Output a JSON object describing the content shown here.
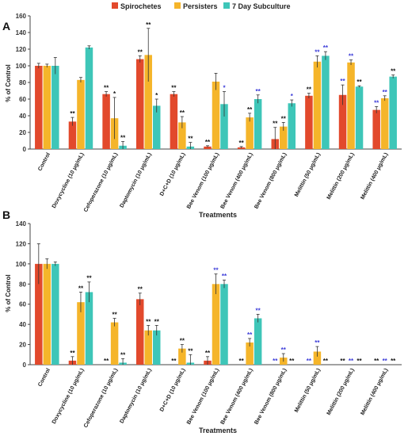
{
  "legend": [
    {
      "name": "Spirochetes",
      "color": "#e2492c"
    },
    {
      "name": "Persisters",
      "color": "#f5b52a"
    },
    {
      "name": "7 Day Subculture",
      "color": "#3ec6b8"
    }
  ],
  "colors": {
    "star_black": "#111111",
    "star_blue": "#3a3ad8",
    "axis": "#444444"
  },
  "chart_data": [
    {
      "type": "bar",
      "panel_label": "A",
      "ylabel": "% of Control",
      "xlabel": "Treatments",
      "ylim": [
        0,
        160
      ],
      "yticks": [
        0,
        20,
        40,
        60,
        80,
        100,
        120,
        140,
        160
      ],
      "grid": false,
      "legend_position": "top-center",
      "categories": [
        "Control",
        "Doxycycline (10 μg/mL)",
        "Cefoperazone (10 μg/mL)",
        "Daptomycin (10 μg/mL)",
        "D+C+D (10 μg/mL)",
        "Bee Venom (100 μg/mL)",
        "Bee Venom (400 μg/mL)",
        "Bee Venom (800 μg/mL)",
        "Melittin (50 μg/mL)",
        "Melittin (200 μg/mL)",
        "Melittin (400 μg/mL)"
      ],
      "series": [
        {
          "name": "Spirochetes",
          "values": [
            100,
            33,
            66,
            108,
            66,
            3,
            2,
            12,
            64,
            65,
            47
          ],
          "errors": [
            3,
            5,
            3,
            4,
            3,
            1,
            1,
            14,
            3,
            12,
            4
          ],
          "stars": [
            "",
            "**",
            "**",
            "**",
            "**",
            "**",
            "**",
            "**",
            "**",
            "**",
            "**"
          ],
          "star_colors": [
            "",
            "black",
            "black",
            "black",
            "black",
            "black",
            "black",
            "black",
            "black",
            "blue",
            "blue"
          ]
        },
        {
          "name": "Persisters",
          "values": [
            100,
            83,
            37,
            113,
            32,
            81,
            38,
            27,
            105,
            104,
            61
          ],
          "errors": [
            2,
            3,
            25,
            32,
            7,
            10,
            5,
            5,
            7,
            3,
            3
          ],
          "stars": [
            "",
            "",
            "*",
            "**",
            "**",
            "",
            "**",
            "**",
            "**",
            "**",
            "**"
          ],
          "star_colors": [
            "",
            "black",
            "black",
            "black",
            "black",
            "black",
            "black",
            "black",
            "blue",
            "blue",
            "blue"
          ]
        },
        {
          "name": "7 Day Subculture",
          "values": [
            100,
            122,
            4,
            52,
            3,
            54,
            60,
            55,
            112,
            75,
            87
          ],
          "errors": [
            10,
            2,
            5,
            8,
            5,
            15,
            5,
            4,
            5,
            1,
            2
          ],
          "stars": [
            "",
            "",
            "**",
            "*",
            "**",
            "*",
            "**",
            "*",
            "**",
            "**",
            "**"
          ],
          "star_colors": [
            "",
            "black",
            "black",
            "black",
            "black",
            "blue",
            "blue",
            "blue",
            "blue",
            "black",
            "black"
          ]
        }
      ]
    },
    {
      "type": "bar",
      "panel_label": "B",
      "ylabel": "% of Control",
      "xlabel": "Treatments",
      "ylim": [
        0,
        140
      ],
      "yticks": [
        0,
        20,
        40,
        60,
        80,
        100,
        120,
        140
      ],
      "grid": false,
      "categories": [
        "Control",
        "Doxycycline (10 μg/mL)",
        "Cefoperazone (10 μg/mL)",
        "Daptomycin (10 μg/mL)",
        "D+C+D (10 μg/mL)",
        "Bee Venom (100 μg/mL)",
        "Bee Venom (400 μg/mL)",
        "Bee Venom (800 μg/mL)",
        "Melittin (50 μg/mL)",
        "Melittin (200 μg/mL)",
        "Melittin (400 μg/mL)"
      ],
      "series": [
        {
          "name": "Spirochetes",
          "values": [
            100,
            4,
            0,
            65,
            0,
            4,
            0,
            0,
            0,
            0,
            0
          ],
          "errors": [
            20,
            4,
            0,
            6,
            0,
            4,
            0,
            0,
            0,
            0,
            0
          ],
          "stars": [
            "",
            "**",
            "**",
            "**",
            "**",
            "**",
            "**",
            "**",
            "**",
            "**",
            "**"
          ],
          "star_colors": [
            "",
            "black",
            "black",
            "black",
            "black",
            "black",
            "black",
            "blue",
            "blue",
            "black",
            "black"
          ]
        },
        {
          "name": "Persisters",
          "values": [
            100,
            62,
            42,
            34,
            16,
            80,
            22,
            7,
            13,
            0,
            0
          ],
          "errors": [
            5,
            10,
            4,
            5,
            4,
            10,
            4,
            4,
            5,
            0,
            0
          ],
          "stars": [
            "",
            "**",
            "**",
            "**",
            "**",
            "**",
            "**",
            "**",
            "**",
            "**",
            "**"
          ],
          "star_colors": [
            "",
            "black",
            "black",
            "black",
            "black",
            "blue",
            "blue",
            "blue",
            "blue",
            "blue",
            "blue"
          ]
        },
        {
          "name": "7 Day Subculture",
          "values": [
            100,
            72,
            2,
            34,
            2,
            80,
            46,
            0,
            0,
            0,
            0
          ],
          "errors": [
            2,
            10,
            4,
            5,
            8,
            4,
            4,
            0,
            0,
            0,
            0
          ],
          "stars": [
            "",
            "**",
            "**",
            "**",
            "**",
            "**",
            "**",
            "**",
            "**",
            "**",
            "**"
          ],
          "star_colors": [
            "",
            "black",
            "black",
            "black",
            "black",
            "blue",
            "blue",
            "black",
            "black",
            "black",
            "black"
          ]
        }
      ]
    }
  ]
}
